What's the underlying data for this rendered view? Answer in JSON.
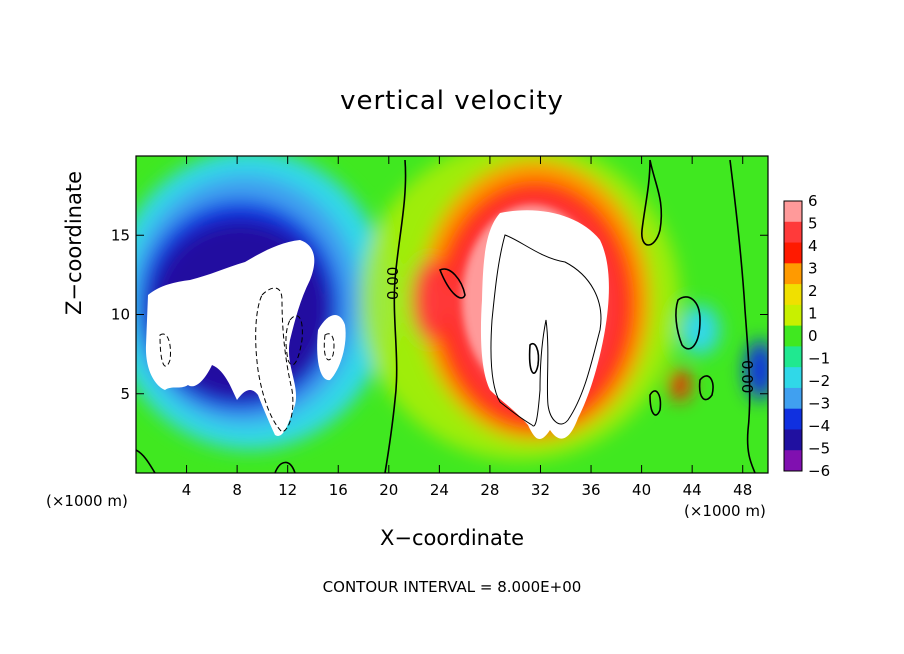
{
  "chart_data": {
    "type": "heatmap",
    "title": "vertical velocity",
    "xlabel": "X−coordinate",
    "ylabel": "Z−coordinate",
    "x_unit_left": "(×1000 m)",
    "x_unit_right": "(×1000 m)",
    "footer": "CONTOUR INTERVAL = 8.000E+00",
    "xlim": [
      0,
      50
    ],
    "ylim": [
      0,
      20
    ],
    "x_ticks": [
      "4",
      "8",
      "12",
      "16",
      "20",
      "24",
      "28",
      "32",
      "36",
      "40",
      "44",
      "48"
    ],
    "y_ticks": [
      "5",
      "10",
      "15"
    ],
    "colorbar": {
      "levels": [
        "6",
        "5",
        "4",
        "3",
        "2",
        "1",
        "0",
        "−1",
        "−2",
        "−3",
        "−4",
        "−5",
        "−6"
      ],
      "colors": [
        "#ff9a9a",
        "#ff3a3a",
        "#ff1a00",
        "#ff9a00",
        "#f0e000",
        "#c8f000",
        "#40e820",
        "#20e890",
        "#30d8e8",
        "#40a0f0",
        "#1030e0",
        "#2010a0",
        "#8010b0"
      ]
    },
    "contour_labels": [
      "0.00",
      "0.00"
    ],
    "features": [
      {
        "name": "updraft core",
        "x_center": 31,
        "z_center": 10,
        "sign": "positive"
      },
      {
        "name": "downdraft region",
        "x_center": 10,
        "z_center": 9,
        "sign": "negative"
      }
    ]
  }
}
